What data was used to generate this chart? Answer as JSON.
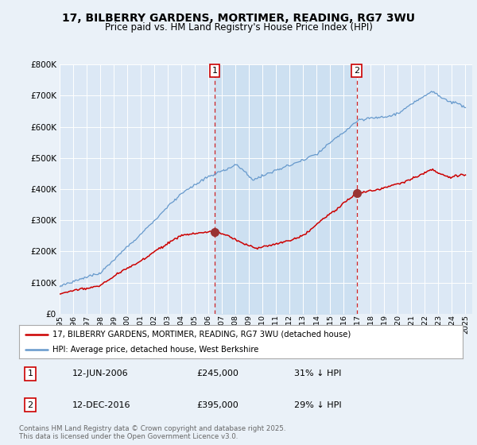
{
  "title": "17, BILBERRY GARDENS, MORTIMER, READING, RG7 3WU",
  "subtitle": "Price paid vs. HM Land Registry's House Price Index (HPI)",
  "bg_color": "#eaf1f8",
  "plot_bg_color": "#dce8f5",
  "fill_color": "#c8ddf0",
  "red_color": "#cc0000",
  "blue_color": "#6699cc",
  "marker_dot_color": "#993333",
  "marker1_year": 2006.46,
  "marker1_date_str": "12-JUN-2006",
  "marker1_price": 245000,
  "marker1_text": "31% ↓ HPI",
  "marker2_year": 2016.95,
  "marker2_date_str": "12-DEC-2016",
  "marker2_price": 395000,
  "marker2_text": "29% ↓ HPI",
  "legend_red": "17, BILBERRY GARDENS, MORTIMER, READING, RG7 3WU (detached house)",
  "legend_blue": "HPI: Average price, detached house, West Berkshire",
  "footer": "Contains HM Land Registry data © Crown copyright and database right 2025.\nThis data is licensed under the Open Government Licence v3.0.",
  "ylim": [
    0,
    800000
  ],
  "yticks": [
    0,
    100000,
    200000,
    300000,
    400000,
    500000,
    600000,
    700000,
    800000
  ],
  "xlim_start": 1995,
  "xlim_end": 2025.5
}
